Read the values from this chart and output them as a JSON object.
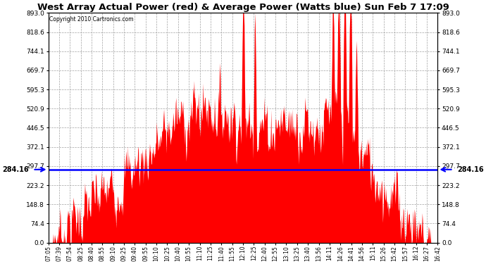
{
  "title": "West Array Actual Power (red) & Average Power (Watts blue) Sun Feb 7 17:09",
  "copyright": "Copyright 2010 Cartronics.com",
  "avg_power": 284.16,
  "y_ticks": [
    0.0,
    74.4,
    148.8,
    223.2,
    297.7,
    372.1,
    446.5,
    520.9,
    595.3,
    669.7,
    744.1,
    818.6,
    893.0
  ],
  "y_max": 893.0,
  "y_min": 0.0,
  "x_labels": [
    "07:05",
    "07:39",
    "07:54",
    "08:25",
    "08:40",
    "08:55",
    "09:10",
    "09:25",
    "09:40",
    "09:55",
    "10:10",
    "10:25",
    "10:40",
    "10:55",
    "11:10",
    "11:25",
    "11:40",
    "11:55",
    "12:10",
    "12:25",
    "12:40",
    "12:55",
    "13:10",
    "13:25",
    "13:40",
    "13:56",
    "14:11",
    "14:26",
    "14:41",
    "14:56",
    "15:11",
    "15:26",
    "15:42",
    "15:57",
    "16:12",
    "16:27",
    "16:42"
  ],
  "red_color": "#FF0000",
  "blue_color": "#0000FF",
  "bg_color": "#FFFFFF",
  "grid_color": "#999999"
}
